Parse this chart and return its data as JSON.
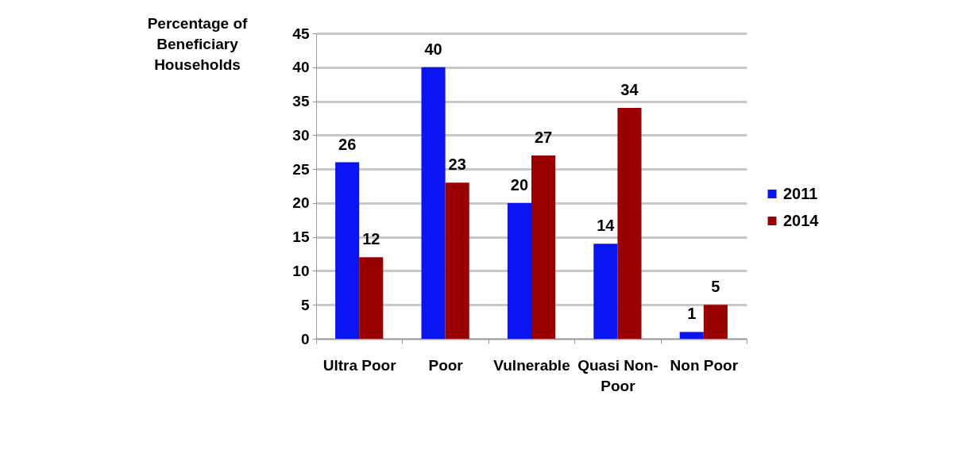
{
  "chart_data": {
    "type": "bar",
    "ylabel": "Percentage of Beneficiary Households",
    "categories": [
      "Ultra Poor",
      "Poor",
      "Vulnerable",
      "Quasi Non-Poor",
      "Non Poor"
    ],
    "series": [
      {
        "name": "2011",
        "color": "#0a14f0",
        "values": [
          26,
          40,
          20,
          14,
          1
        ]
      },
      {
        "name": "2014",
        "color": "#990000",
        "values": [
          12,
          23,
          27,
          34,
          5
        ]
      }
    ],
    "ylim": [
      0,
      45
    ],
    "yticks": [
      0,
      5,
      10,
      15,
      20,
      25,
      30,
      35,
      40,
      45
    ],
    "grid": "y",
    "legend": "right",
    "data_labels": true
  }
}
